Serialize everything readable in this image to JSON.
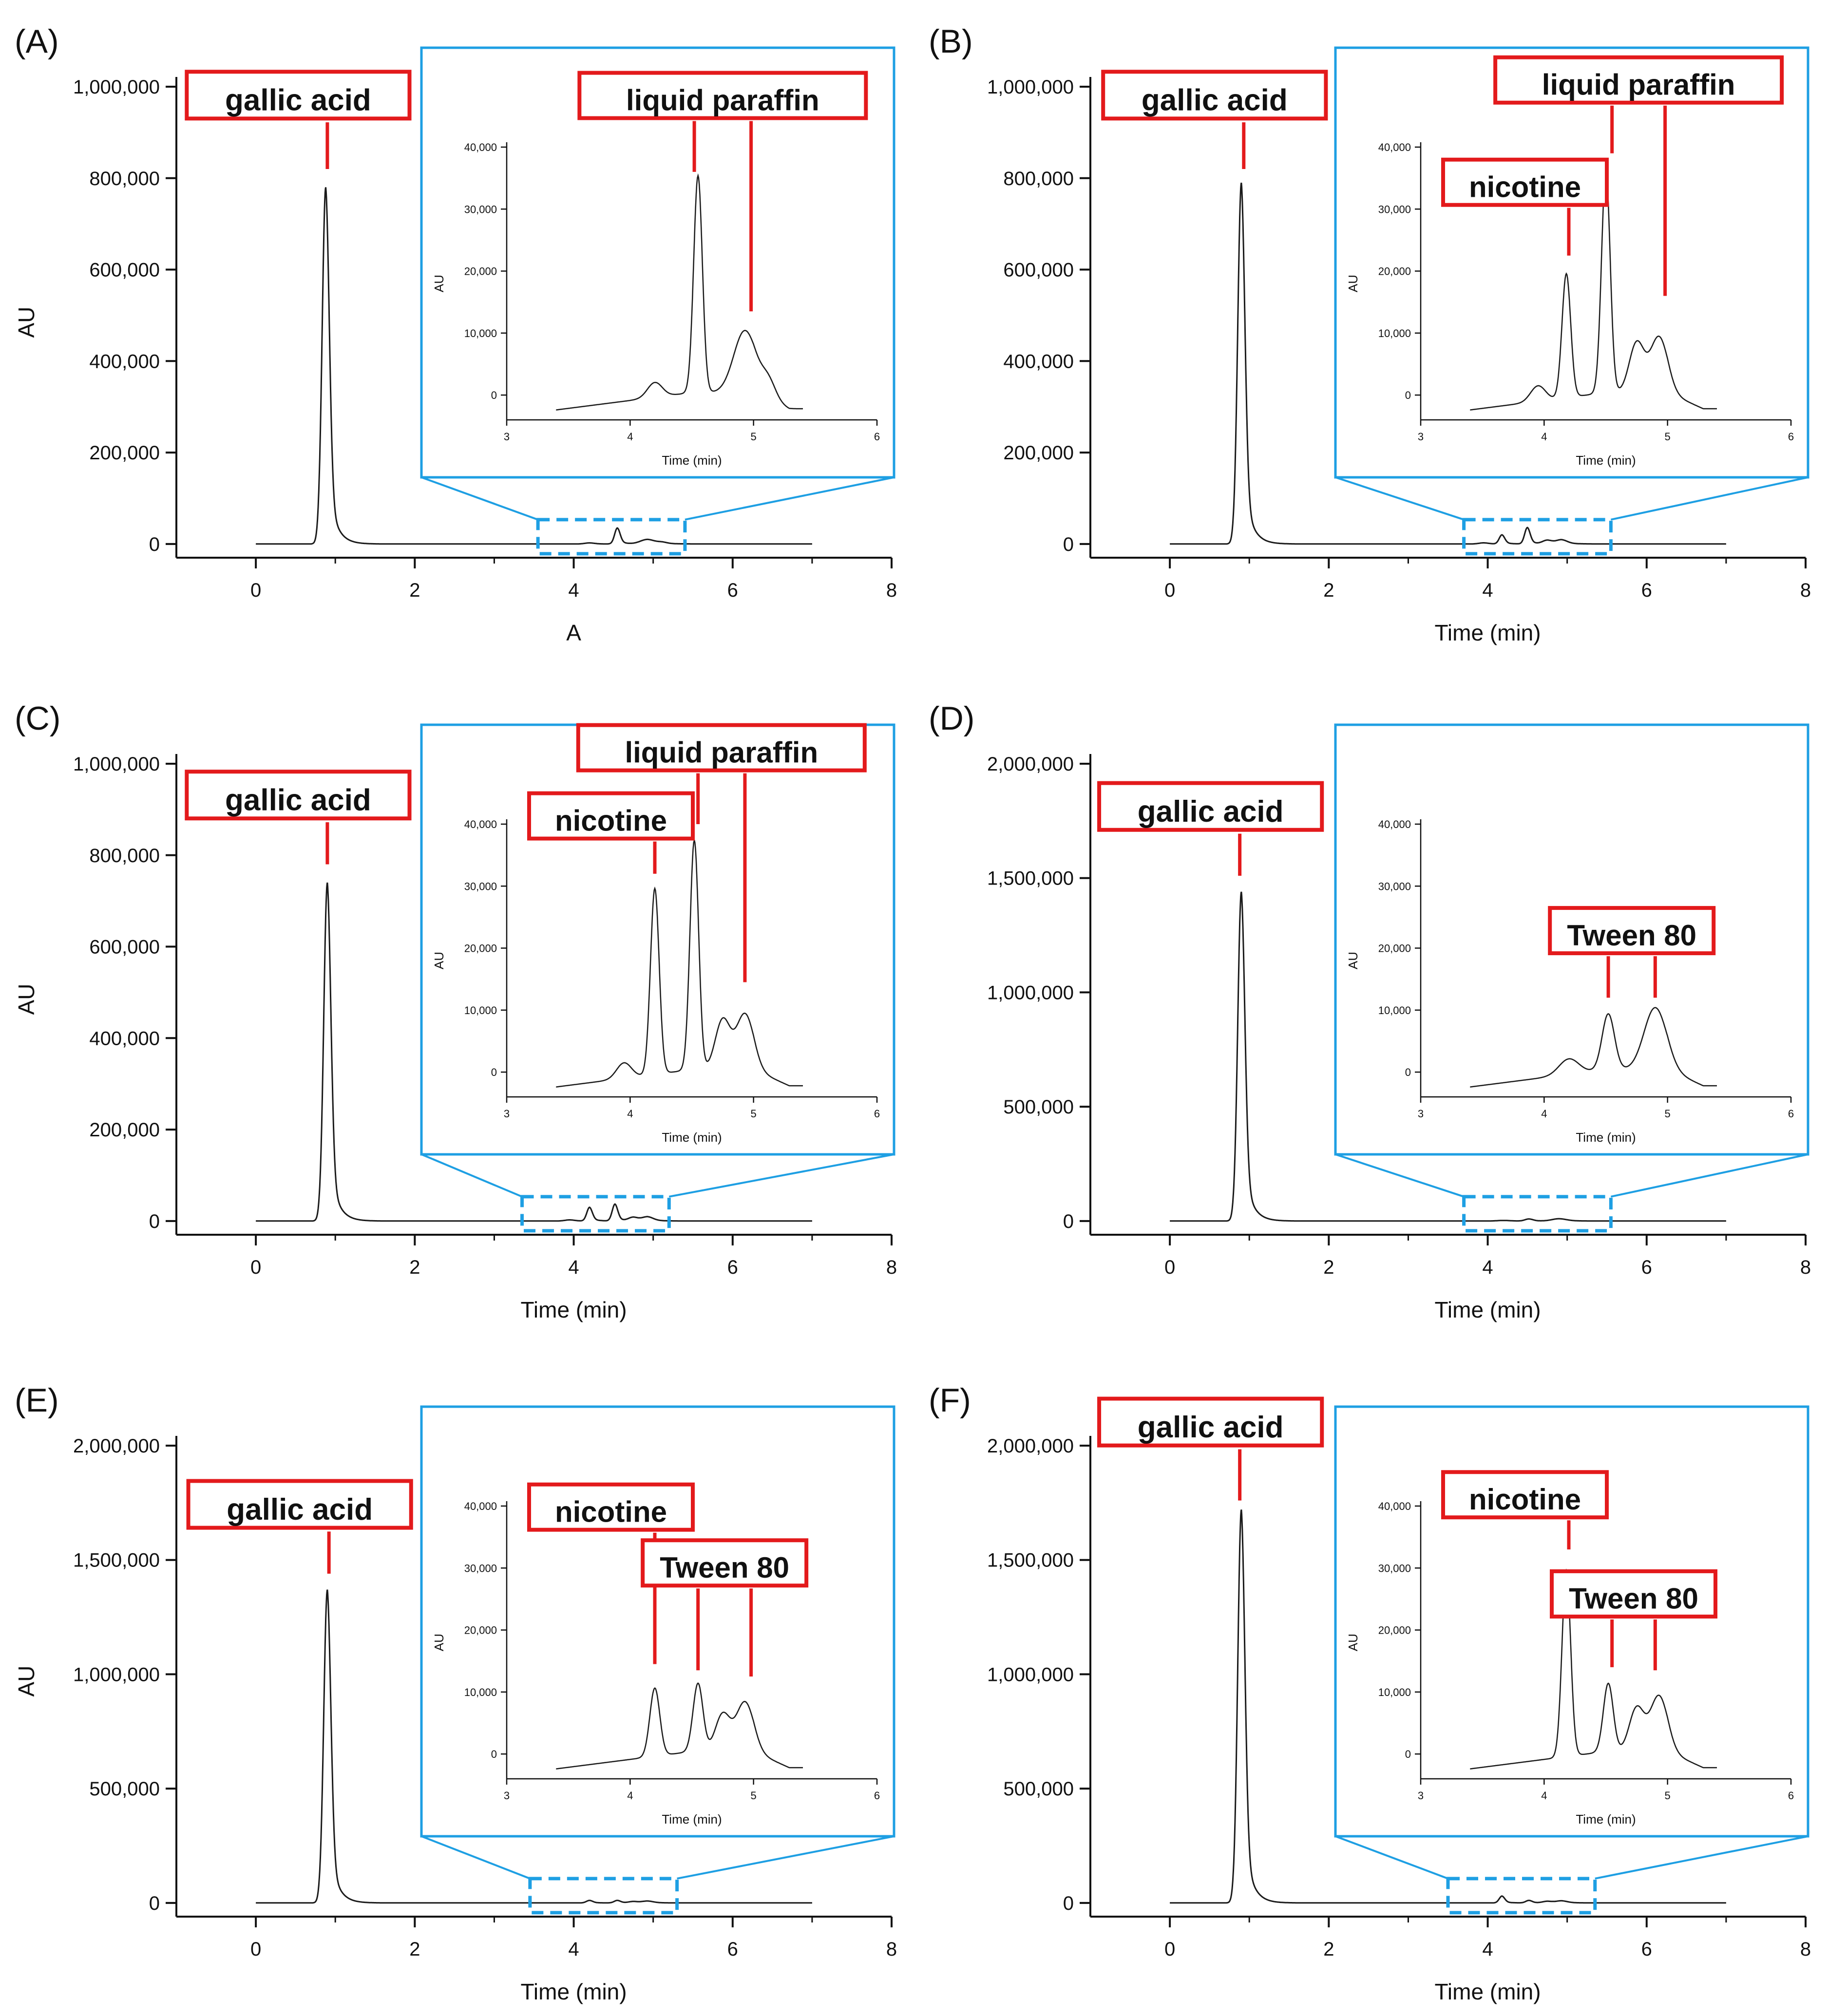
{
  "colors": {
    "trace": "#1a1a1a",
    "annotation": "#e31a1c",
    "inset": "#1e9fe3",
    "axis": "#111111"
  },
  "chart_data": [
    {
      "type": "line",
      "panel_label": "(A)",
      "xlabel": "A",
      "ylabel": "AU",
      "xlim": [
        -1,
        8
      ],
      "ylim": [
        -30000,
        1000000
      ],
      "xticks": [
        0,
        2,
        4,
        6,
        8
      ],
      "xtick_labels": [
        "0",
        "2",
        "4",
        "6",
        "8"
      ],
      "yticks": [
        0,
        200000,
        400000,
        600000,
        800000,
        1000000
      ],
      "ytick_labels": [
        "0",
        "200,000",
        "400,000",
        "600,000",
        "800,000",
        "1,000,000"
      ],
      "peaks": [
        [
          0.88,
          780000,
          0.045
        ],
        [
          4.2,
          2400,
          0.06
        ],
        [
          4.55,
          35000,
          0.035
        ],
        [
          4.93,
          10000,
          0.09
        ],
        [
          5.12,
          3000,
          0.06
        ]
      ],
      "trace_end": 7.0,
      "annotations": [
        {
          "text": "gallic acid",
          "x": 0.9,
          "tip_y": 820000,
          "box_y": 970000
        }
      ],
      "zoom_range": [
        3.55,
        5.4
      ],
      "inset": {
        "xlabel": "Time (min)",
        "ylabel": "AU",
        "xlim": [
          3,
          6
        ],
        "ylim": [
          -4000,
          40000
        ],
        "xticks": [
          3,
          4,
          5,
          6
        ],
        "xtick_labels": [
          "3",
          "4",
          "5",
          "6"
        ],
        "yticks": [
          0,
          10000,
          20000,
          30000,
          40000
        ],
        "ytick_labels": [
          "0",
          "10,000",
          "20,000",
          "30,000",
          "40,000"
        ],
        "data_range": [
          3.4,
          5.4
        ],
        "annotations": [
          {
            "text": "liquid paraffin",
            "x": [
              4.52,
              4.98
            ],
            "tip_y": [
              36000,
              13500
            ],
            "box_y": 47500
          }
        ]
      }
    },
    {
      "type": "line",
      "panel_label": "(B)",
      "xlabel": "Time (min)",
      "ylabel": "",
      "xlim": [
        -1,
        8
      ],
      "ylim": [
        -30000,
        1000000
      ],
      "xticks": [
        0,
        2,
        4,
        6,
        8
      ],
      "xtick_labels": [
        "0",
        "2",
        "4",
        "6",
        "8"
      ],
      "yticks": [
        0,
        200000,
        400000,
        600000,
        800000,
        1000000
      ],
      "ytick_labels": [
        "0",
        "200,000",
        "400,000",
        "600,000",
        "800,000",
        "1,000,000"
      ],
      "peaks": [
        [
          0.9,
          790000,
          0.045
        ],
        [
          3.95,
          2500,
          0.06
        ],
        [
          4.18,
          20000,
          0.035
        ],
        [
          4.5,
          36000,
          0.035
        ],
        [
          4.75,
          8000,
          0.06
        ],
        [
          4.93,
          9000,
          0.07
        ]
      ],
      "trace_end": 7.0,
      "annotations": [
        {
          "text": "gallic acid",
          "x": 0.93,
          "tip_y": 820000,
          "box_y": 970000
        }
      ],
      "zoom_range": [
        3.7,
        5.55
      ],
      "inset": {
        "xlabel": "Time (min)",
        "ylabel": "AU",
        "xlim": [
          3,
          6
        ],
        "ylim": [
          -4000,
          40000
        ],
        "xticks": [
          3,
          4,
          5,
          6
        ],
        "xtick_labels": [
          "3",
          "4",
          "5",
          "6"
        ],
        "yticks": [
          0,
          10000,
          20000,
          30000,
          40000
        ],
        "ytick_labels": [
          "0",
          "10,000",
          "20,000",
          "30,000",
          "40,000"
        ],
        "data_range": [
          3.4,
          5.4
        ],
        "annotations": [
          {
            "text": "nicotine",
            "x": 4.2,
            "tip_y": 22500,
            "box_y": 33500
          },
          {
            "text": "liquid paraffin",
            "x": [
              4.55,
              4.98
            ],
            "tip_y": [
              39000,
              16000
            ],
            "box_y": 50000
          }
        ]
      }
    },
    {
      "type": "line",
      "panel_label": "(C)",
      "xlabel": "Time (min)",
      "ylabel": "AU",
      "xlim": [
        -1,
        8
      ],
      "ylim": [
        -30000,
        1000000
      ],
      "xticks": [
        0,
        2,
        4,
        6,
        8
      ],
      "xtick_labels": [
        "0",
        "2",
        "4",
        "6",
        "8"
      ],
      "yticks": [
        0,
        200000,
        400000,
        600000,
        800000,
        1000000
      ],
      "ytick_labels": [
        "0",
        "200,000",
        "400,000",
        "600,000",
        "800,000",
        "1,000,000"
      ],
      "peaks": [
        [
          0.9,
          740000,
          0.045
        ],
        [
          3.95,
          2500,
          0.06
        ],
        [
          4.2,
          30000,
          0.035
        ],
        [
          4.52,
          37000,
          0.035
        ],
        [
          4.75,
          8000,
          0.06
        ],
        [
          4.93,
          9000,
          0.07
        ]
      ],
      "trace_end": 7.0,
      "annotations": [
        {
          "text": "gallic acid",
          "x": 0.9,
          "tip_y": 780000,
          "box_y": 920000
        }
      ],
      "zoom_range": [
        3.35,
        5.2
      ],
      "inset": {
        "xlabel": "Time (min)",
        "ylabel": "AU",
        "xlim": [
          3,
          6
        ],
        "ylim": [
          -4000,
          40000
        ],
        "xticks": [
          3,
          4,
          5,
          6
        ],
        "xtick_labels": [
          "3",
          "4",
          "5",
          "6"
        ],
        "yticks": [
          0,
          10000,
          20000,
          30000,
          40000
        ],
        "ytick_labels": [
          "0",
          "10,000",
          "20,000",
          "30,000",
          "40,000"
        ],
        "data_range": [
          3.4,
          5.4
        ],
        "annotations": [
          {
            "text": "nicotine",
            "x": 4.2,
            "tip_y": 32000,
            "box_y": 40500
          },
          {
            "text": "liquid paraffin",
            "x": [
              4.55,
              4.93
            ],
            "tip_y": [
              40000,
              14500
            ],
            "box_y": 51500
          }
        ]
      }
    },
    {
      "type": "line",
      "panel_label": "(D)",
      "xlabel": "Time (min)",
      "ylabel": "",
      "xlim": [
        -1,
        8
      ],
      "ylim": [
        -60000,
        2000000
      ],
      "xticks": [
        0,
        2,
        4,
        6,
        8
      ],
      "xtick_labels": [
        "0",
        "2",
        "4",
        "6",
        "8"
      ],
      "yticks": [
        0,
        500000,
        1000000,
        1500000,
        2000000
      ],
      "ytick_labels": [
        "0",
        "500,000",
        "1,000,000",
        "1,500,000",
        "2,000,000"
      ],
      "peaks": [
        [
          0.9,
          1440000,
          0.045
        ],
        [
          4.2,
          2500,
          0.08
        ],
        [
          4.52,
          9000,
          0.05
        ],
        [
          4.9,
          10000,
          0.09
        ]
      ],
      "trace_end": 7.0,
      "annotations": [
        {
          "text": "gallic acid",
          "x": 0.88,
          "tip_y": 1510000,
          "box_y": 1790000
        }
      ],
      "zoom_range": [
        3.7,
        5.55
      ],
      "inset": {
        "xlabel": "Time (min)",
        "ylabel": "AU",
        "xlim": [
          3,
          6
        ],
        "ylim": [
          -4000,
          40000
        ],
        "xticks": [
          3,
          4,
          5,
          6
        ],
        "xtick_labels": [
          "3",
          "4",
          "5",
          "6"
        ],
        "yticks": [
          0,
          10000,
          20000,
          30000,
          40000
        ],
        "ytick_labels": [
          "0",
          "10,000",
          "20,000",
          "30,000",
          "40,000"
        ],
        "data_range": [
          3.4,
          5.4
        ],
        "annotations": [
          {
            "text": "Tween 80",
            "x": [
              4.52,
              4.9
            ],
            "tip_y": [
              12000,
              12000
            ],
            "box_y": 22000
          }
        ]
      }
    },
    {
      "type": "line",
      "panel_label": "(E)",
      "xlabel": "Time (min)",
      "ylabel": "AU",
      "xlim": [
        -1,
        8
      ],
      "ylim": [
        -60000,
        2000000
      ],
      "xticks": [
        0,
        2,
        4,
        6,
        8
      ],
      "xtick_labels": [
        "0",
        "2",
        "4",
        "6",
        "8"
      ],
      "yticks": [
        0,
        500000,
        1000000,
        1500000,
        2000000
      ],
      "ytick_labels": [
        "0",
        "500,000",
        "1,000,000",
        "1,500,000",
        "2,000,000"
      ],
      "peaks": [
        [
          0.9,
          1370000,
          0.045
        ],
        [
          4.2,
          11000,
          0.04
        ],
        [
          4.55,
          11000,
          0.04
        ],
        [
          4.75,
          6000,
          0.06
        ],
        [
          4.93,
          8000,
          0.07
        ]
      ],
      "trace_end": 7.0,
      "annotations": [
        {
          "text": "gallic acid",
          "x": 0.92,
          "tip_y": 1440000,
          "box_y": 1720000
        }
      ],
      "zoom_range": [
        3.45,
        5.3
      ],
      "inset": {
        "xlabel": "Time (min)",
        "ylabel": "AU",
        "xlim": [
          3,
          6
        ],
        "ylim": [
          -4000,
          40000
        ],
        "xticks": [
          3,
          4,
          5,
          6
        ],
        "xtick_labels": [
          "3",
          "4",
          "5",
          "6"
        ],
        "yticks": [
          0,
          10000,
          20000,
          30000,
          40000
        ],
        "ytick_labels": [
          "0",
          "10,000",
          "20,000",
          "30,000",
          "40,000"
        ],
        "data_range": [
          3.4,
          5.4
        ],
        "annotations": [
          {
            "text": "nicotine",
            "x": 4.2,
            "tip_y": 14500,
            "box_y": 39000
          },
          {
            "text": "Tween 80",
            "x": [
              4.55,
              4.98
            ],
            "tip_y": [
              13500,
              12500
            ],
            "box_y": 30000
          }
        ]
      }
    },
    {
      "type": "line",
      "panel_label": "(F)",
      "xlabel": "Time (min)",
      "ylabel": "",
      "xlim": [
        -1,
        8
      ],
      "ylim": [
        -60000,
        2000000
      ],
      "xticks": [
        0,
        2,
        4,
        6,
        8
      ],
      "xtick_labels": [
        "0",
        "2",
        "4",
        "6",
        "8"
      ],
      "yticks": [
        0,
        500000,
        1000000,
        1500000,
        2000000
      ],
      "ytick_labels": [
        "0",
        "500,000",
        "1,000,000",
        "1,500,000",
        "2,000,000"
      ],
      "peaks": [
        [
          0.9,
          1720000,
          0.045
        ],
        [
          4.18,
          30000,
          0.035
        ],
        [
          4.52,
          11000,
          0.04
        ],
        [
          4.75,
          7000,
          0.06
        ],
        [
          4.93,
          9000,
          0.07
        ]
      ],
      "trace_end": 7.0,
      "annotations": [
        {
          "text": "gallic acid",
          "x": 0.88,
          "tip_y": 1760000,
          "box_y": 2080000
        }
      ],
      "zoom_range": [
        3.5,
        5.35
      ],
      "inset": {
        "xlabel": "Time (min)",
        "ylabel": "AU",
        "xlim": [
          3,
          6
        ],
        "ylim": [
          -4000,
          40000
        ],
        "xticks": [
          3,
          4,
          5,
          6
        ],
        "xtick_labels": [
          "3",
          "4",
          "5",
          "6"
        ],
        "yticks": [
          0,
          10000,
          20000,
          30000,
          40000
        ],
        "ytick_labels": [
          "0",
          "10,000",
          "20,000",
          "30,000",
          "40,000"
        ],
        "data_range": [
          3.4,
          5.4
        ],
        "annotations": [
          {
            "text": "nicotine",
            "x": 4.2,
            "tip_y": 33000,
            "box_y": 41000
          },
          {
            "text": "Tween 80",
            "x": [
              4.55,
              4.9
            ],
            "tip_y": [
              14000,
              13500
            ],
            "box_y": 25000
          }
        ]
      }
    }
  ]
}
